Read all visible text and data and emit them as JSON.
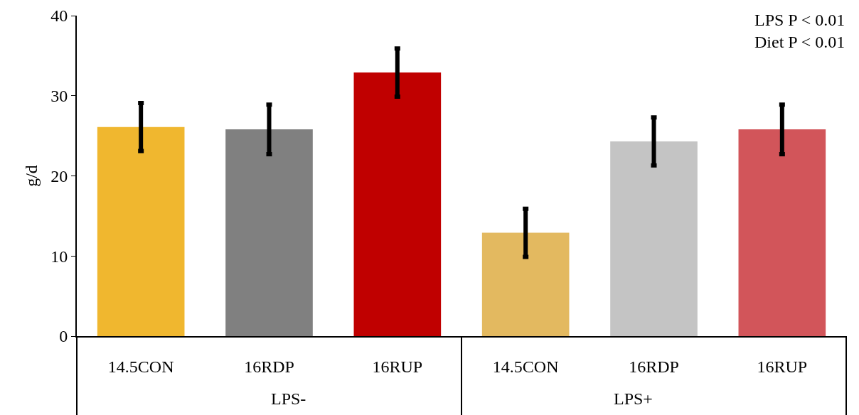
{
  "chart_data": {
    "type": "bar",
    "ylabel": "g/d",
    "categories": [
      "14.5CON",
      "16RDP",
      "16RUP",
      "14.5CON",
      "16RDP",
      "16RUP"
    ],
    "values": [
      26.1,
      25.8,
      32.9,
      12.9,
      24.3,
      25.8
    ],
    "errors": [
      3,
      3.1,
      3,
      3,
      3,
      3.1
    ],
    "colors": [
      "#f0b72f",
      "#808080",
      "#c00000",
      "#e3b960",
      "#c4c4c4",
      "#d2555a"
    ],
    "ylim": [
      0,
      40
    ],
    "yticks": [
      0,
      10,
      20,
      30,
      40
    ],
    "grid": false,
    "annotations": [
      "LPS P < 0.01\nDiet P < 0.01",
      "LPS-",
      "LPS+"
    ]
  }
}
